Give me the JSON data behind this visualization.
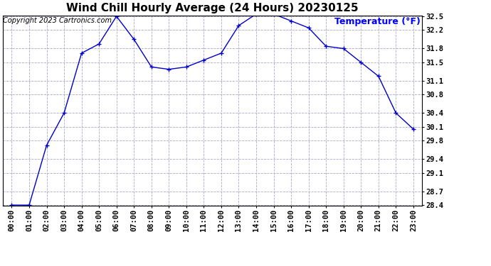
{
  "title": "Wind Chill Hourly Average (24 Hours) 20230125",
  "copyright_text": "Copyright 2023 Cartronics.com",
  "ylabel_annotation": "Temperature (°F)",
  "hours": [
    "00:00",
    "01:00",
    "02:00",
    "03:00",
    "04:00",
    "05:00",
    "06:00",
    "07:00",
    "08:00",
    "09:00",
    "10:00",
    "11:00",
    "12:00",
    "13:00",
    "14:00",
    "15:00",
    "16:00",
    "17:00",
    "18:00",
    "19:00",
    "20:00",
    "21:00",
    "22:00",
    "23:00"
  ],
  "values": [
    28.4,
    28.4,
    29.7,
    30.4,
    31.7,
    31.9,
    32.5,
    32.0,
    31.4,
    31.35,
    31.4,
    31.55,
    31.7,
    32.3,
    32.55,
    32.55,
    32.4,
    32.25,
    31.85,
    31.8,
    31.5,
    31.2,
    30.4,
    30.05
  ],
  "line_color": "#0000CC",
  "marker": "+",
  "ylim_min": 28.4,
  "ylim_max": 32.5,
  "yticks": [
    28.4,
    28.7,
    29.1,
    29.4,
    29.8,
    30.1,
    30.4,
    30.8,
    31.1,
    31.5,
    31.8,
    32.2,
    32.5
  ],
  "background_color": "#ffffff",
  "grid_color": "#aaaacc",
  "title_fontsize": 11,
  "copyright_fontsize": 7,
  "tick_fontsize": 7.5,
  "ylabel_color": "#0000FF",
  "ylabel_fontsize": 9
}
